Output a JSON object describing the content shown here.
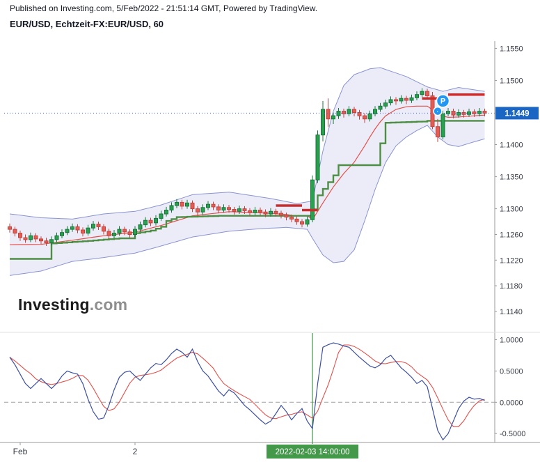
{
  "meta": {
    "published_line": "Published on Investing.com, 5/Feb/2022 - 21:51:14 GMT, Powered by TradingView.",
    "symbol_line": "EUR/USD, Echtzeit-FX:EUR/USD, 60"
  },
  "watermark": {
    "bold": "Investing",
    "light": ".com"
  },
  "colors": {
    "up": "#29a04d",
    "up_border": "#17753a",
    "down": "#e25d55",
    "down_border": "#c0433c",
    "band_fill": "rgba(103,110,190,0.13)",
    "band_line": "#8a93cf",
    "basis_line": "#e0514c",
    "ma_line": "#4e8e44",
    "pivot_line": "#cc2b2b",
    "last_price_bg": "#1a66c2",
    "last_price_text": "#ffffff",
    "dotted_line": "#4a6fc9",
    "marker_bg": "#2196f3",
    "marker_text": "#ffffff",
    "osc_main": "#3b4f9e",
    "osc_signal": "#e0514c",
    "highlight": "#44984a",
    "highlight_text": "#ffffff",
    "axis_text": "#363a45",
    "axis_line": "#999999",
    "separator": "#e2e2e2",
    "zero_dash": "#a0a0a0"
  },
  "chart_data": [
    {
      "type": "candlestick",
      "title": "EUR/USD, Echtzeit-FX:EUR/USD, 60",
      "last_price": 1.1449,
      "last_price_label": "1.1449",
      "ylim": [
        1.1115,
        1.1558
      ],
      "y_ticks": [
        {
          "v": 1.155,
          "t": "1.1550"
        },
        {
          "v": 1.15,
          "t": "1.1500"
        },
        {
          "v": 1.14,
          "t": "1.1400"
        },
        {
          "v": 1.135,
          "t": "1.1350"
        },
        {
          "v": 1.13,
          "t": "1.1300"
        },
        {
          "v": 1.126,
          "t": "1.1260"
        },
        {
          "v": 1.122,
          "t": "1.1220"
        },
        {
          "v": 1.118,
          "t": "1.1180"
        },
        {
          "v": 1.114,
          "t": "1.1140"
        }
      ],
      "candles": [
        [
          1.1272,
          1.1277,
          1.1263,
          1.1268
        ],
        [
          1.1268,
          1.1272,
          1.1257,
          1.1262
        ],
        [
          1.1262,
          1.1266,
          1.125,
          1.1255
        ],
        [
          1.1255,
          1.126,
          1.1247,
          1.1252
        ],
        [
          1.1252,
          1.1263,
          1.1248,
          1.1258
        ],
        [
          1.1258,
          1.1262,
          1.1248,
          1.1253
        ],
        [
          1.1253,
          1.1257,
          1.1245,
          1.125
        ],
        [
          1.125,
          1.1255,
          1.1242,
          1.1247
        ],
        [
          1.1247,
          1.1257,
          1.1243,
          1.1252
        ],
        [
          1.1252,
          1.1263,
          1.1248,
          1.1258
        ],
        [
          1.1258,
          1.1268,
          1.1254,
          1.1263
        ],
        [
          1.1263,
          1.1273,
          1.1259,
          1.1268
        ],
        [
          1.1268,
          1.1277,
          1.1264,
          1.1272
        ],
        [
          1.1272,
          1.1276,
          1.1262,
          1.1267
        ],
        [
          1.1267,
          1.1271,
          1.1257,
          1.1262
        ],
        [
          1.1262,
          1.1275,
          1.1258,
          1.127
        ],
        [
          1.127,
          1.1281,
          1.1266,
          1.1276
        ],
        [
          1.1276,
          1.128,
          1.1267,
          1.1272
        ],
        [
          1.1272,
          1.1276,
          1.126,
          1.1265
        ],
        [
          1.1265,
          1.1269,
          1.1253,
          1.1258
        ],
        [
          1.1258,
          1.1267,
          1.1254,
          1.1262
        ],
        [
          1.1262,
          1.1273,
          1.1258,
          1.1268
        ],
        [
          1.1268,
          1.1272,
          1.1259,
          1.1264
        ],
        [
          1.1264,
          1.1268,
          1.1255,
          1.126
        ],
        [
          1.126,
          1.1273,
          1.1256,
          1.1268
        ],
        [
          1.1268,
          1.128,
          1.1264,
          1.1275
        ],
        [
          1.1275,
          1.1287,
          1.1271,
          1.1282
        ],
        [
          1.1282,
          1.1286,
          1.1273,
          1.1278
        ],
        [
          1.1278,
          1.129,
          1.1274,
          1.1285
        ],
        [
          1.1285,
          1.1297,
          1.1281,
          1.1292
        ],
        [
          1.1292,
          1.1303,
          1.1288,
          1.1298
        ],
        [
          1.1298,
          1.131,
          1.1294,
          1.1305
        ],
        [
          1.1305,
          1.1315,
          1.1301,
          1.131
        ],
        [
          1.131,
          1.1314,
          1.1299,
          1.1304
        ],
        [
          1.1304,
          1.1314,
          1.13,
          1.1309
        ],
        [
          1.1309,
          1.1313,
          1.1295,
          1.13
        ],
        [
          1.13,
          1.1304,
          1.129,
          1.1295
        ],
        [
          1.1295,
          1.1307,
          1.1291,
          1.1302
        ],
        [
          1.1302,
          1.1312,
          1.1298,
          1.1307
        ],
        [
          1.1307,
          1.1311,
          1.1298,
          1.1303
        ],
        [
          1.1303,
          1.1307,
          1.1293,
          1.1298
        ],
        [
          1.1298,
          1.1307,
          1.1294,
          1.1302
        ],
        [
          1.1302,
          1.1306,
          1.1294,
          1.1299
        ],
        [
          1.1299,
          1.1303,
          1.1291,
          1.1296
        ],
        [
          1.1296,
          1.1305,
          1.1292,
          1.13
        ],
        [
          1.13,
          1.1304,
          1.1292,
          1.1297
        ],
        [
          1.1297,
          1.1301,
          1.1289,
          1.1294
        ],
        [
          1.1294,
          1.1303,
          1.129,
          1.1298
        ],
        [
          1.1298,
          1.1302,
          1.129,
          1.1295
        ],
        [
          1.1295,
          1.1299,
          1.1287,
          1.1292
        ],
        [
          1.1292,
          1.1301,
          1.1288,
          1.1296
        ],
        [
          1.1296,
          1.13,
          1.1288,
          1.1293
        ],
        [
          1.1293,
          1.1297,
          1.1285,
          1.129
        ],
        [
          1.129,
          1.1294,
          1.1282,
          1.1287
        ],
        [
          1.1287,
          1.1291,
          1.1279,
          1.1284
        ],
        [
          1.1284,
          1.1288,
          1.1275,
          1.128
        ],
        [
          1.128,
          1.1284,
          1.1271,
          1.1276
        ],
        [
          1.1276,
          1.1288,
          1.1272,
          1.1283
        ],
        [
          1.1283,
          1.1352,
          1.1279,
          1.1345
        ],
        [
          1.1345,
          1.1422,
          1.134,
          1.1415
        ],
        [
          1.1415,
          1.1468,
          1.1405,
          1.1455
        ],
        [
          1.1455,
          1.1472,
          1.1428,
          1.144
        ],
        [
          1.144,
          1.145,
          1.1432,
          1.1445
        ],
        [
          1.1445,
          1.1457,
          1.144,
          1.1452
        ],
        [
          1.1452,
          1.1456,
          1.1442,
          1.1448
        ],
        [
          1.1448,
          1.146,
          1.1444,
          1.1455
        ],
        [
          1.1455,
          1.1459,
          1.1444,
          1.145
        ],
        [
          1.145,
          1.1454,
          1.1439,
          1.1445
        ],
        [
          1.1445,
          1.1449,
          1.1434,
          1.144
        ],
        [
          1.144,
          1.1453,
          1.1436,
          1.1448
        ],
        [
          1.1448,
          1.146,
          1.1444,
          1.1455
        ],
        [
          1.1455,
          1.1465,
          1.1451,
          1.146
        ],
        [
          1.146,
          1.147,
          1.1456,
          1.1465
        ],
        [
          1.1465,
          1.1475,
          1.1461,
          1.147
        ],
        [
          1.147,
          1.1474,
          1.1462,
          1.1468
        ],
        [
          1.1468,
          1.1477,
          1.1464,
          1.1472
        ],
        [
          1.1472,
          1.1476,
          1.1463,
          1.1469
        ],
        [
          1.1469,
          1.1478,
          1.1465,
          1.1473
        ],
        [
          1.1473,
          1.1483,
          1.1469,
          1.1478
        ],
        [
          1.1478,
          1.1488,
          1.1474,
          1.1483
        ],
        [
          1.1483,
          1.1487,
          1.147,
          1.1476
        ],
        [
          1.1476,
          1.1482,
          1.1424,
          1.1428
        ],
        [
          1.1428,
          1.144,
          1.1404,
          1.1412
        ],
        [
          1.1412,
          1.1453,
          1.1408,
          1.1448
        ],
        [
          1.1448,
          1.1457,
          1.1444,
          1.1452
        ],
        [
          1.1452,
          1.1456,
          1.1441,
          1.1446
        ],
        [
          1.1446,
          1.1455,
          1.1442,
          1.145
        ],
        [
          1.145,
          1.1454,
          1.1442,
          1.1447
        ],
        [
          1.1447,
          1.1456,
          1.1443,
          1.1451
        ],
        [
          1.1451,
          1.1455,
          1.1443,
          1.1448
        ],
        [
          1.1448,
          1.1457,
          1.1444,
          1.1452
        ],
        [
          1.1452,
          1.1456,
          1.1444,
          1.1449
        ]
      ],
      "overlays": {
        "band_upper": [
          [
            0,
            1.1292
          ],
          [
            6,
            1.1286
          ],
          [
            12,
            1.1284
          ],
          [
            18,
            1.1292
          ],
          [
            24,
            1.1296
          ],
          [
            29,
            1.1306
          ],
          [
            35,
            1.1322
          ],
          [
            42,
            1.1326
          ],
          [
            50,
            1.1316
          ],
          [
            55,
            1.1308
          ],
          [
            58,
            1.1312
          ],
          [
            60,
            1.139
          ],
          [
            62,
            1.1452
          ],
          [
            64,
            1.1492
          ],
          [
            66,
            1.1509
          ],
          [
            69,
            1.1518
          ],
          [
            71,
            1.152
          ],
          [
            76,
            1.1506
          ],
          [
            80,
            1.149
          ],
          [
            83,
            1.1483
          ],
          [
            86,
            1.1489
          ],
          [
            91,
            1.1483
          ]
        ],
        "band_lower": [
          [
            0,
            1.1196
          ],
          [
            6,
            1.1203
          ],
          [
            12,
            1.1218
          ],
          [
            18,
            1.1224
          ],
          [
            24,
            1.1231
          ],
          [
            29,
            1.1242
          ],
          [
            35,
            1.1256
          ],
          [
            42,
            1.1265
          ],
          [
            48,
            1.1269
          ],
          [
            53,
            1.1271
          ],
          [
            57,
            1.1268
          ],
          [
            58,
            1.1254
          ],
          [
            60,
            1.1228
          ],
          [
            62,
            1.1216
          ],
          [
            64,
            1.1218
          ],
          [
            66,
            1.1236
          ],
          [
            68,
            1.1281
          ],
          [
            70,
            1.133
          ],
          [
            72,
            1.1372
          ],
          [
            74,
            1.1398
          ],
          [
            76,
            1.1412
          ],
          [
            78,
            1.1422
          ],
          [
            80,
            1.143
          ],
          [
            82,
            1.1412
          ],
          [
            84,
            1.14
          ],
          [
            86,
            1.1397
          ],
          [
            88,
            1.1402
          ],
          [
            91,
            1.1409
          ]
        ],
        "ma_step": [
          [
            0,
            1.1222
          ],
          [
            7,
            1.1222
          ],
          [
            8,
            1.1246
          ],
          [
            15,
            1.125
          ],
          [
            21,
            1.1254
          ],
          [
            23,
            1.1254
          ],
          [
            24,
            1.1262
          ],
          [
            27,
            1.1266
          ],
          [
            29,
            1.1272
          ],
          [
            30,
            1.1281
          ],
          [
            32,
            1.1287
          ],
          [
            40,
            1.1289
          ],
          [
            57,
            1.1289
          ],
          [
            58,
            1.1299
          ],
          [
            59,
            1.1321
          ],
          [
            60,
            1.1331
          ],
          [
            62,
            1.1352
          ],
          [
            63,
            1.1368
          ],
          [
            70,
            1.1368
          ],
          [
            71,
            1.1402
          ],
          [
            72,
            1.1434
          ],
          [
            79,
            1.1436
          ],
          [
            80,
            1.1437
          ],
          [
            91,
            1.1437
          ]
        ],
        "pivot_segments": [
          {
            "from": 51,
            "to": 56,
            "price": 1.1305
          },
          {
            "from": 56,
            "to": 59,
            "price": 1.1298
          },
          {
            "from": 79,
            "to": 84,
            "price": 1.1472
          },
          {
            "from": 84,
            "to": 91,
            "price": 1.1478
          }
        ],
        "markers": [
          {
            "index": 83,
            "price": 1.1468,
            "label": "P",
            "r": 9
          },
          {
            "index": 82,
            "price": 1.1452,
            "label": "·",
            "r": 6
          }
        ]
      }
    },
    {
      "type": "line",
      "name": "oscillator",
      "ylim": [
        -0.62,
        1.05
      ],
      "y_ticks": [
        {
          "v": 1.0,
          "t": "1.0000"
        },
        {
          "v": 0.5,
          "t": "0.5000"
        },
        {
          "v": 0.0,
          "t": "0.0000"
        },
        {
          "v": -0.5,
          "t": "-0.5000"
        }
      ],
      "zero_line_dashed": true,
      "values": [
        0.72,
        0.6,
        0.45,
        0.3,
        0.22,
        0.3,
        0.38,
        0.3,
        0.22,
        0.3,
        0.42,
        0.5,
        0.47,
        0.45,
        0.3,
        0.05,
        -0.15,
        -0.27,
        -0.25,
        -0.05,
        0.2,
        0.4,
        0.48,
        0.5,
        0.42,
        0.35,
        0.45,
        0.55,
        0.62,
        0.6,
        0.68,
        0.78,
        0.85,
        0.8,
        0.72,
        0.85,
        0.65,
        0.5,
        0.42,
        0.3,
        0.18,
        0.1,
        0.2,
        0.15,
        0.05,
        -0.05,
        -0.12,
        -0.2,
        -0.28,
        -0.35,
        -0.3,
        -0.18,
        -0.05,
        -0.15,
        -0.28,
        -0.18,
        -0.1,
        -0.3,
        -0.42,
        0.3,
        0.88,
        0.92,
        0.95,
        0.93,
        0.9,
        0.88,
        0.8,
        0.72,
        0.65,
        0.58,
        0.55,
        0.6,
        0.7,
        0.75,
        0.65,
        0.55,
        0.48,
        0.4,
        0.3,
        0.35,
        0.25,
        -0.1,
        -0.45,
        -0.6,
        -0.5,
        -0.3,
        -0.1,
        0.02,
        0.08,
        0.05,
        0.06,
        0.03
      ],
      "signal_smoothing": 5,
      "highlight": {
        "index": 58,
        "label": "2022-02-03 14:00:00"
      }
    }
  ],
  "x_axis": {
    "labels": [
      {
        "text": "Feb",
        "index": 2
      },
      {
        "text": "2",
        "index": 24
      }
    ]
  }
}
